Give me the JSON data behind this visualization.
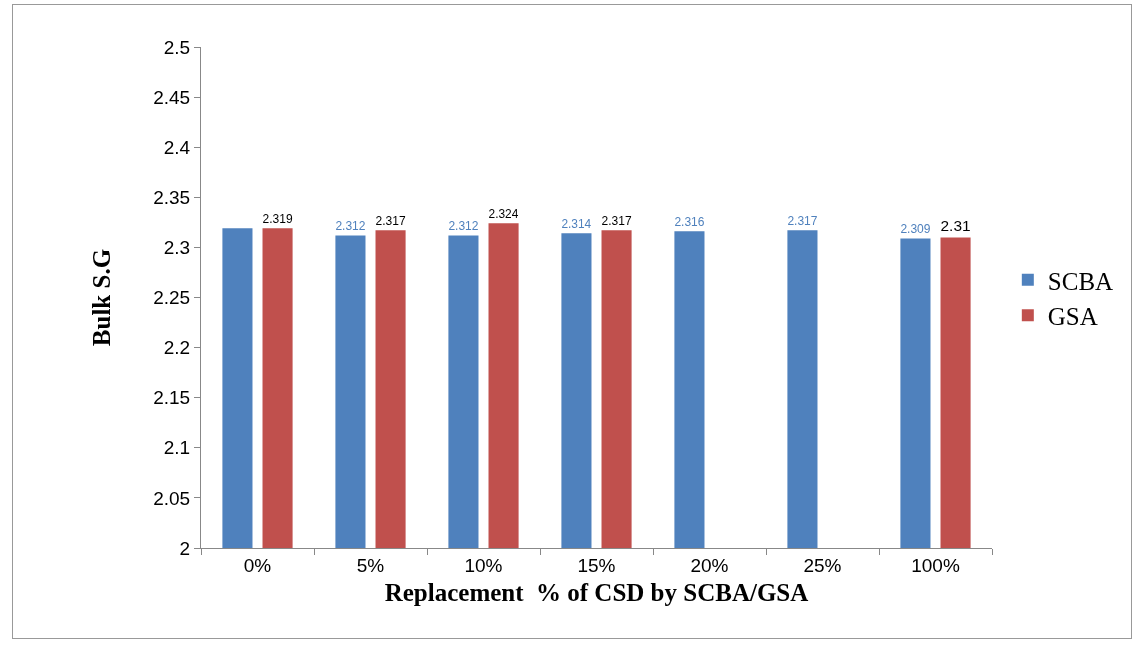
{
  "chart_data": {
    "type": "bar",
    "xlabel": "Replacement  % of CSD by SCBA/GSA",
    "ylabel": "Bulk S.G",
    "categories": [
      "0%",
      "5%",
      "10%",
      "15%",
      "20%",
      "25%",
      "100%"
    ],
    "series": [
      {
        "name": "SCBA",
        "color": "#4f81bd",
        "values": [
          2.319,
          2.312,
          2.312,
          2.314,
          2.316,
          2.317,
          2.309
        ],
        "value_labels": [
          null,
          "2.312",
          "2.312",
          "2.314",
          "2.316",
          "2.317",
          "2.309"
        ]
      },
      {
        "name": "GSA",
        "color": "#c0504d",
        "values": [
          2.319,
          2.317,
          2.324,
          2.317,
          null,
          null,
          2.31
        ],
        "value_labels": [
          "2.319",
          "2.317",
          "2.324",
          "2.317",
          null,
          null,
          "2.31"
        ]
      }
    ],
    "ylim": [
      2,
      2.5
    ],
    "yticks": [
      2,
      2.05,
      2.1,
      2.15,
      2.2,
      2.25,
      2.3,
      2.35,
      2.4,
      2.45,
      2.5
    ],
    "grid": false,
    "legend": "right"
  }
}
